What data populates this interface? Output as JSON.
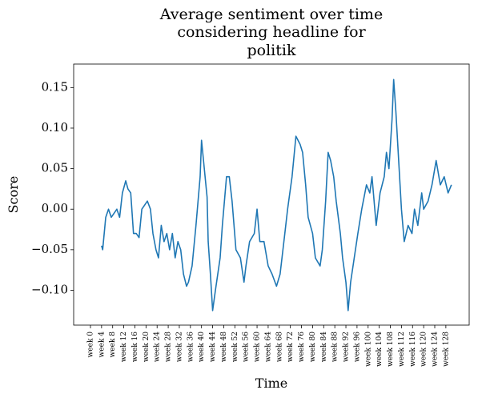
{
  "chart_data": {
    "type": "line",
    "title": [
      "Average sentiment over time",
      "considering headline for",
      "politik"
    ],
    "x_label": "Time",
    "y_label": "Score",
    "xlim": [
      -6.05,
      136.4
    ],
    "ylim": [
      -0.143,
      0.179
    ],
    "xticks": [
      {
        "value": 0,
        "label": "week 0"
      },
      {
        "value": 4,
        "label": "week 4"
      },
      {
        "value": 8,
        "label": "week 8"
      },
      {
        "value": 12,
        "label": "week 12"
      },
      {
        "value": 16,
        "label": "week 16"
      },
      {
        "value": 20,
        "label": "week 20"
      },
      {
        "value": 24,
        "label": "week 24"
      },
      {
        "value": 28,
        "label": "week 28"
      },
      {
        "value": 32,
        "label": "week 32"
      },
      {
        "value": 36,
        "label": "week 36"
      },
      {
        "value": 40,
        "label": "week 40"
      },
      {
        "value": 44,
        "label": "week 44"
      },
      {
        "value": 48,
        "label": "week 48"
      },
      {
        "value": 52,
        "label": "week 52"
      },
      {
        "value": 56,
        "label": "week 56"
      },
      {
        "value": 60,
        "label": "week 60"
      },
      {
        "value": 64,
        "label": "week 64"
      },
      {
        "value": 68,
        "label": "week 68"
      },
      {
        "value": 72,
        "label": "week 72"
      },
      {
        "value": 76,
        "label": "week 76"
      },
      {
        "value": 80,
        "label": "week 80"
      },
      {
        "value": 84,
        "label": "week 84"
      },
      {
        "value": 88,
        "label": "week 88"
      },
      {
        "value": 92,
        "label": "week 92"
      },
      {
        "value": 96,
        "label": "week 96"
      },
      {
        "value": 100,
        "label": "week 100"
      },
      {
        "value": 104,
        "label": "week 104"
      },
      {
        "value": 108,
        "label": "week 108"
      },
      {
        "value": 112,
        "label": "week 112"
      },
      {
        "value": 116,
        "label": "week 116"
      },
      {
        "value": 120,
        "label": "week 120"
      },
      {
        "value": 124,
        "label": "week 124"
      },
      {
        "value": 128,
        "label": "week 128"
      }
    ],
    "yticks": [
      {
        "value": -0.1,
        "label": "−0.10"
      },
      {
        "value": -0.05,
        "label": "−0.05"
      },
      {
        "value": 0,
        "label": "0.00"
      },
      {
        "value": 0.05,
        "label": "0.05"
      },
      {
        "value": 0.1,
        "label": "0.10"
      },
      {
        "value": 0.15,
        "label": "0.15"
      }
    ],
    "x": [
      4,
      4.4,
      5.5,
      6.5,
      7.5,
      8.5,
      9.5,
      10.5,
      11.5,
      12.7,
      13.5,
      14.5,
      15.5,
      16.5,
      17.5,
      18.5,
      19.5,
      20.5,
      21.6,
      22.5,
      23.6,
      24.5,
      25.5,
      26.5,
      27.5,
      28.5,
      29.5,
      30.5,
      31.5,
      32.5,
      33.5,
      34.6,
      35.3,
      36.6,
      38,
      39.5,
      40,
      41,
      42,
      42.4,
      43.2,
      44,
      45,
      46.7,
      47.5,
      49,
      50,
      51,
      52.4,
      54,
      55.3,
      56,
      57.3,
      59,
      60,
      61,
      62.5,
      64,
      65.4,
      67,
      68.3,
      70,
      71,
      72.6,
      74,
      75.5,
      76.4,
      77.5,
      78.4,
      80,
      81,
      82.7,
      83.5,
      84.7,
      85.6,
      86.5,
      87.6,
      88.5,
      90,
      90.8,
      92,
      92.8,
      93.7,
      95,
      96.3,
      97.7,
      99.4,
      100.6,
      101.4,
      102.9,
      104.3,
      105.8,
      106.6,
      107.5,
      108.6,
      109.2,
      110,
      111,
      112,
      113,
      114.4,
      115.8,
      116.7,
      117.9,
      119.3,
      120,
      121.6,
      123,
      124.5,
      126,
      127.4,
      128.8,
      130
    ],
    "series": [
      {
        "name": "politik",
        "color": "#1f77b4",
        "values": [
          -0.045,
          -0.05,
          -0.01,
          0.0,
          -0.01,
          -0.005,
          0.0,
          -0.01,
          0.02,
          0.035,
          0.025,
          0.02,
          -0.03,
          -0.03,
          -0.035,
          0.0,
          0.005,
          0.01,
          0.0,
          -0.03,
          -0.05,
          -0.06,
          -0.02,
          -0.04,
          -0.03,
          -0.05,
          -0.03,
          -0.06,
          -0.04,
          -0.05,
          -0.08,
          -0.095,
          -0.09,
          -0.07,
          -0.02,
          0.04,
          0.085,
          0.05,
          0.015,
          -0.04,
          -0.08,
          -0.125,
          -0.1,
          -0.06,
          -0.02,
          0.04,
          0.04,
          0.01,
          -0.05,
          -0.06,
          -0.09,
          -0.07,
          -0.04,
          -0.03,
          0.0,
          -0.04,
          -0.04,
          -0.07,
          -0.08,
          -0.095,
          -0.08,
          -0.03,
          0.0,
          0.04,
          0.09,
          0.08,
          0.07,
          0.03,
          -0.01,
          -0.03,
          -0.06,
          -0.07,
          -0.05,
          0.01,
          0.07,
          0.06,
          0.04,
          0.01,
          -0.03,
          -0.06,
          -0.09,
          -0.125,
          -0.09,
          -0.06,
          -0.03,
          0.0,
          0.03,
          0.02,
          0.04,
          -0.02,
          0.02,
          0.04,
          0.07,
          0.05,
          0.11,
          0.16,
          0.12,
          0.06,
          0.0,
          -0.04,
          -0.02,
          -0.03,
          0.0,
          -0.02,
          0.02,
          0.0,
          0.01,
          0.03,
          0.06,
          0.03,
          0.04,
          0.02,
          0.03
        ]
      }
    ]
  }
}
